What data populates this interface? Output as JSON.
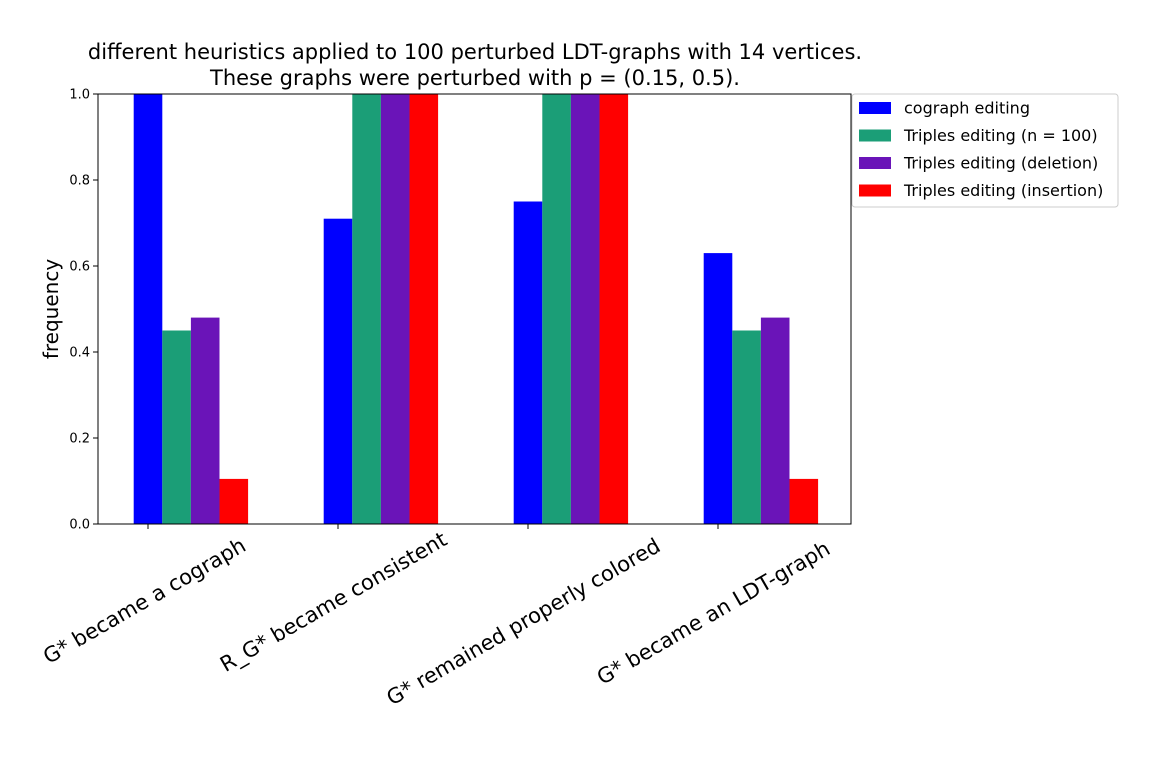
{
  "chart_data": {
    "type": "bar",
    "title_lines": [
      "different heuristics applied to 100 perturbed LDT-graphs with 14 vertices.",
      "These graphs were perturbed with p = (0.15, 0.5)."
    ],
    "xlabel": "",
    "ylabel": "frequency",
    "ylim": [
      0.0,
      1.0
    ],
    "yticks": [
      "0.0",
      "0.2",
      "0.4",
      "0.6",
      "0.8",
      "1.0"
    ],
    "grid": false,
    "legend_position": "outside-right",
    "categories": [
      "G* became a cograph",
      "R_G* became consistent",
      "G* remained properly colored",
      "G* became an LDT-graph"
    ],
    "series": [
      {
        "name": "cograph editing",
        "color": "#0000ff",
        "values": [
          1.0,
          0.71,
          0.75,
          0.63
        ]
      },
      {
        "name": "Triples editing (n = 100)",
        "color": "#1b9e77",
        "values": [
          0.45,
          1.0,
          1.0,
          0.45
        ]
      },
      {
        "name": "Triples editing (deletion)",
        "color": "#6a14b8",
        "values": [
          0.48,
          1.0,
          1.0,
          0.48
        ]
      },
      {
        "name": "Triples editing (insertion)",
        "color": "#ff0000",
        "values": [
          0.105,
          1.0,
          1.0,
          0.105
        ]
      }
    ]
  }
}
